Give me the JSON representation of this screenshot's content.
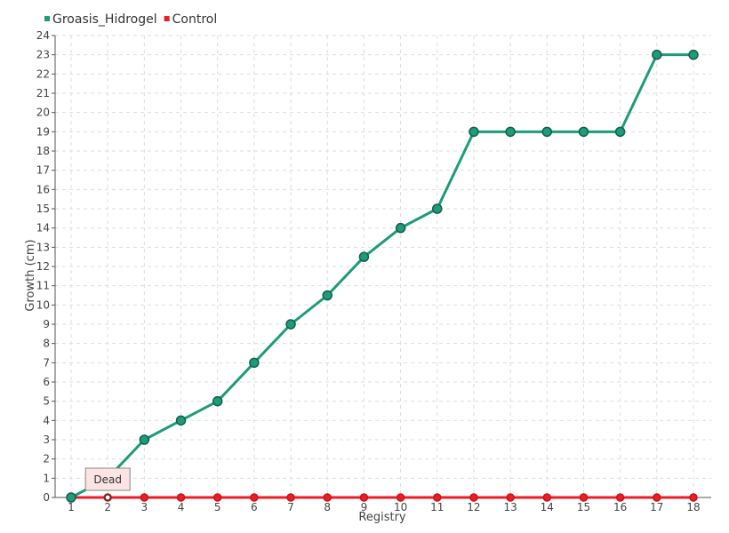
{
  "chart_data": {
    "type": "line",
    "x": [
      1,
      2,
      3,
      4,
      5,
      6,
      7,
      8,
      9,
      10,
      11,
      12,
      13,
      14,
      15,
      16,
      17,
      18
    ],
    "series": [
      {
        "name": "Groasis_Hidrogel",
        "color": "#1e9b7a",
        "values": [
          0,
          1,
          3,
          4,
          5,
          7,
          9,
          10.5,
          12.5,
          14,
          15,
          19,
          19,
          19,
          19,
          19,
          23,
          23
        ]
      },
      {
        "name": "Control",
        "color": "#ee1c25",
        "values": [
          0,
          0,
          0,
          0,
          0,
          0,
          0,
          0,
          0,
          0,
          0,
          0,
          0,
          0,
          0,
          0,
          0,
          0
        ]
      }
    ],
    "xlabel": "Registry",
    "ylabel": "Growth (cm)",
    "ylim": [
      0,
      24
    ],
    "ytick_step": 1,
    "grid": true,
    "legend_position": "top-left",
    "annotations": [
      {
        "text": "Dead",
        "x": 2,
        "y": 0
      }
    ]
  }
}
